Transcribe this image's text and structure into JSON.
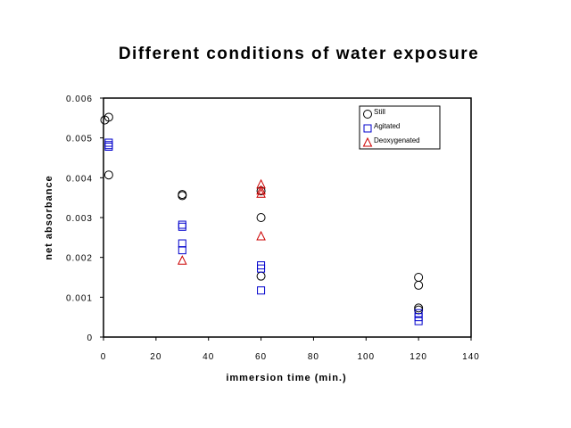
{
  "chart_data": {
    "type": "scatter",
    "title": "Different conditions of water exposure",
    "xlabel": "immersion time (min.)",
    "ylabel": "net absorbance",
    "xlim": [
      0,
      140
    ],
    "ylim": [
      0,
      0.006
    ],
    "x_ticks": [
      "0",
      "20",
      "40",
      "60",
      "80",
      "100",
      "120",
      "140"
    ],
    "y_ticks": [
      "0",
      "0.001",
      "0.002",
      "0.003",
      "0.004",
      "0.005",
      "0.006"
    ],
    "grid": false,
    "legend_position": "top-right",
    "series": [
      {
        "name": "Still",
        "marker": "circle",
        "color": "#000000",
        "points": [
          [
            0.5,
            0.00545
          ],
          [
            2,
            0.00552
          ],
          [
            2,
            0.00407
          ],
          [
            30,
            0.00358
          ],
          [
            30,
            0.00355
          ],
          [
            60,
            0.00367
          ],
          [
            60,
            0.003
          ],
          [
            60,
            0.00153
          ],
          [
            120,
            0.0015
          ],
          [
            120,
            0.0013
          ],
          [
            120,
            0.00073
          ],
          [
            120,
            0.00068
          ]
        ]
      },
      {
        "name": "Agitated",
        "marker": "square",
        "color": "#0000cc",
        "points": [
          [
            2,
            0.00488
          ],
          [
            2,
            0.00478
          ],
          [
            2,
            0.00482
          ],
          [
            30,
            0.00282
          ],
          [
            30,
            0.00277
          ],
          [
            30,
            0.00235
          ],
          [
            30,
            0.00218
          ],
          [
            60,
            0.0018
          ],
          [
            60,
            0.00172
          ],
          [
            60,
            0.00117
          ],
          [
            120,
            0.0006
          ],
          [
            120,
            0.0005
          ],
          [
            120,
            0.0004
          ]
        ]
      },
      {
        "name": "Deoxygenated",
        "marker": "triangle",
        "color": "#cc0000",
        "points": [
          [
            30,
            0.00192
          ],
          [
            60,
            0.00383
          ],
          [
            60,
            0.00368
          ],
          [
            60,
            0.0036
          ],
          [
            60,
            0.00253
          ]
        ]
      }
    ]
  }
}
